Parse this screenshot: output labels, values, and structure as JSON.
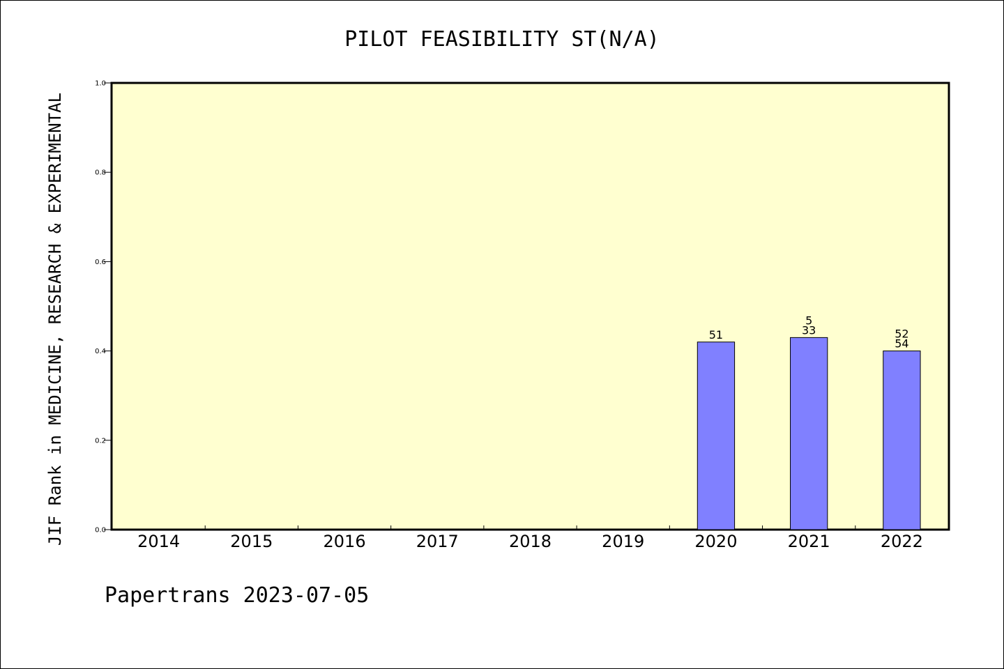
{
  "chart_data": {
    "type": "bar",
    "title": "PILOT FEASIBILITY ST(N/A)",
    "xlabel": "",
    "ylabel": "JIF Rank in MEDICINE, RESEARCH & EXPERIMENTAL",
    "categories": [
      "2014",
      "2015",
      "2016",
      "2017",
      "2018",
      "2019",
      "2020",
      "2021",
      "2022"
    ],
    "values": [
      null,
      null,
      null,
      null,
      null,
      null,
      0.42,
      0.43,
      0.4
    ],
    "bar_labels": [
      [],
      [],
      [],
      [],
      [],
      [],
      [
        "51"
      ],
      [
        "5",
        "33"
      ],
      [
        "52",
        "54"
      ]
    ],
    "ylim": [
      0,
      1.0
    ],
    "yticks": [
      "0.0",
      "0.2",
      "0.4",
      "0.6",
      "0.8",
      "1.0"
    ],
    "grid": false,
    "legend": "none",
    "colors": {
      "plot_background": "#FFFFD0",
      "bar_fill": "#8080FF",
      "bar_stroke": "#000000"
    }
  },
  "footer": "Papertrans 2023-07-05"
}
